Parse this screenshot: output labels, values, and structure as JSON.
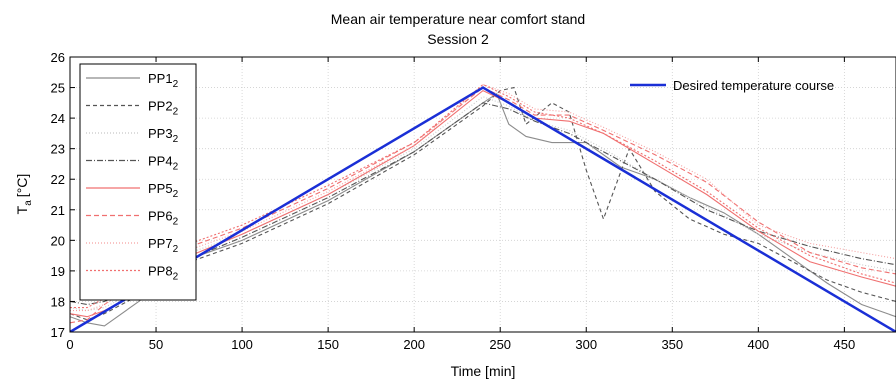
{
  "chart_data": {
    "type": "line",
    "title": "Mean air temperature near comfort stand",
    "subtitle": "Session 2",
    "xlabel": "Time [min]",
    "ylabel_main": "T",
    "ylabel_sub": "a",
    "ylabel_unit": "[°C]",
    "xlim": [
      0,
      480
    ],
    "ylim": [
      17,
      26
    ],
    "xticks": [
      0,
      50,
      100,
      150,
      200,
      250,
      300,
      350,
      400,
      450
    ],
    "yticks": [
      17,
      18,
      19,
      20,
      21,
      22,
      23,
      24,
      25,
      26
    ],
    "grid": true,
    "legend_position": "top-left",
    "legend_right_position": "top-right",
    "series": [
      {
        "name": "PP1",
        "name_sub": "2",
        "color": "#8c8c8c",
        "dash": "",
        "x": [
          0,
          10,
          20,
          40,
          70,
          100,
          150,
          200,
          240,
          248,
          255,
          265,
          280,
          300,
          320,
          340,
          360,
          380,
          400,
          420,
          440,
          460,
          480
        ],
        "y": [
          17.5,
          17.3,
          17.2,
          18.0,
          19.4,
          20.0,
          21.3,
          22.9,
          24.5,
          24.8,
          23.8,
          23.4,
          23.2,
          23.2,
          22.4,
          22.0,
          21.4,
          20.9,
          20.2,
          19.4,
          18.6,
          17.9,
          17.5
        ]
      },
      {
        "name": "PP2",
        "name_sub": "2",
        "color": "#555555",
        "dash": "4,3",
        "x": [
          0,
          10,
          20,
          40,
          70,
          100,
          150,
          200,
          240,
          250,
          258,
          265,
          280,
          290,
          300,
          310,
          325,
          340,
          360,
          380,
          400,
          420,
          440,
          460,
          480
        ],
        "y": [
          17.6,
          17.4,
          17.6,
          18.2,
          19.3,
          19.9,
          21.2,
          22.8,
          24.4,
          24.9,
          25.0,
          23.8,
          24.5,
          24.2,
          22.3,
          20.7,
          23.0,
          21.6,
          20.7,
          20.2,
          19.9,
          19.3,
          18.7,
          18.3,
          18.0
        ]
      },
      {
        "name": "PP3",
        "name_sub": "2",
        "color": "#c8c8c8",
        "dash": "1,2",
        "x": [
          0,
          10,
          20,
          40,
          70,
          100,
          150,
          200,
          240,
          255,
          270,
          290,
          310,
          340,
          370,
          400,
          430,
          460,
          480
        ],
        "y": [
          17.8,
          17.7,
          17.8,
          18.4,
          19.6,
          20.2,
          21.5,
          23.0,
          24.7,
          24.4,
          23.9,
          23.6,
          23.0,
          22.0,
          21.1,
          20.2,
          19.6,
          19.2,
          19.0
        ]
      },
      {
        "name": "PP4",
        "name_sub": "2",
        "color": "#555555",
        "dash": "6,2,1,2",
        "x": [
          0,
          10,
          20,
          40,
          70,
          100,
          150,
          200,
          240,
          255,
          270,
          290,
          310,
          340,
          370,
          400,
          430,
          460,
          480
        ],
        "y": [
          18.0,
          17.9,
          18.0,
          18.5,
          19.4,
          20.1,
          21.4,
          22.9,
          24.5,
          24.3,
          23.9,
          23.5,
          22.9,
          22.0,
          21.0,
          20.3,
          19.8,
          19.4,
          19.2
        ]
      },
      {
        "name": "PP5",
        "name_sub": "2",
        "color": "#f07070",
        "dash": "",
        "x": [
          0,
          10,
          20,
          40,
          70,
          100,
          150,
          200,
          240,
          255,
          270,
          290,
          310,
          340,
          370,
          400,
          430,
          460,
          480
        ],
        "y": [
          17.6,
          17.5,
          17.7,
          18.3,
          19.5,
          20.2,
          21.5,
          23.1,
          24.9,
          24.5,
          24.0,
          23.9,
          23.5,
          22.5,
          21.5,
          20.3,
          19.3,
          18.8,
          18.5
        ]
      },
      {
        "name": "PP6",
        "name_sub": "2",
        "color": "#f07070",
        "dash": "5,3",
        "x": [
          0,
          10,
          20,
          40,
          70,
          100,
          150,
          200,
          240,
          255,
          270,
          290,
          310,
          340,
          370,
          400,
          430,
          460,
          480
        ],
        "y": [
          17.3,
          17.4,
          17.9,
          18.7,
          19.8,
          20.4,
          21.7,
          23.2,
          25.0,
          24.6,
          24.1,
          24.1,
          23.6,
          22.8,
          21.9,
          20.6,
          19.6,
          19.1,
          18.9
        ]
      },
      {
        "name": "PP7",
        "name_sub": "2",
        "color": "#f5a0a0",
        "dash": "1,2",
        "x": [
          0,
          10,
          20,
          40,
          70,
          100,
          150,
          200,
          240,
          255,
          270,
          290,
          310,
          340,
          370,
          400,
          430,
          460,
          480
        ],
        "y": [
          17.7,
          17.7,
          17.9,
          18.6,
          19.7,
          20.3,
          21.6,
          23.1,
          25.1,
          24.8,
          24.3,
          24.2,
          23.7,
          22.9,
          22.0,
          20.5,
          19.9,
          19.6,
          19.4
        ]
      },
      {
        "name": "PP8",
        "name_sub": "2",
        "color": "#f07070",
        "dash": "2,2",
        "x": [
          0,
          10,
          20,
          40,
          70,
          100,
          150,
          200,
          240,
          255,
          270,
          290,
          310,
          340,
          370,
          400,
          430,
          460,
          480
        ],
        "y": [
          17.8,
          17.8,
          18.1,
          18.8,
          19.9,
          20.5,
          21.8,
          23.2,
          25.1,
          24.7,
          24.2,
          24.0,
          23.5,
          22.6,
          21.6,
          20.4,
          19.5,
          18.9,
          18.6
        ]
      },
      {
        "name": "Desired temperature course",
        "color": "#1a2fd6",
        "dash": "",
        "width": 2.5,
        "x": [
          0,
          240,
          480
        ],
        "y": [
          17,
          25,
          17
        ]
      }
    ]
  }
}
